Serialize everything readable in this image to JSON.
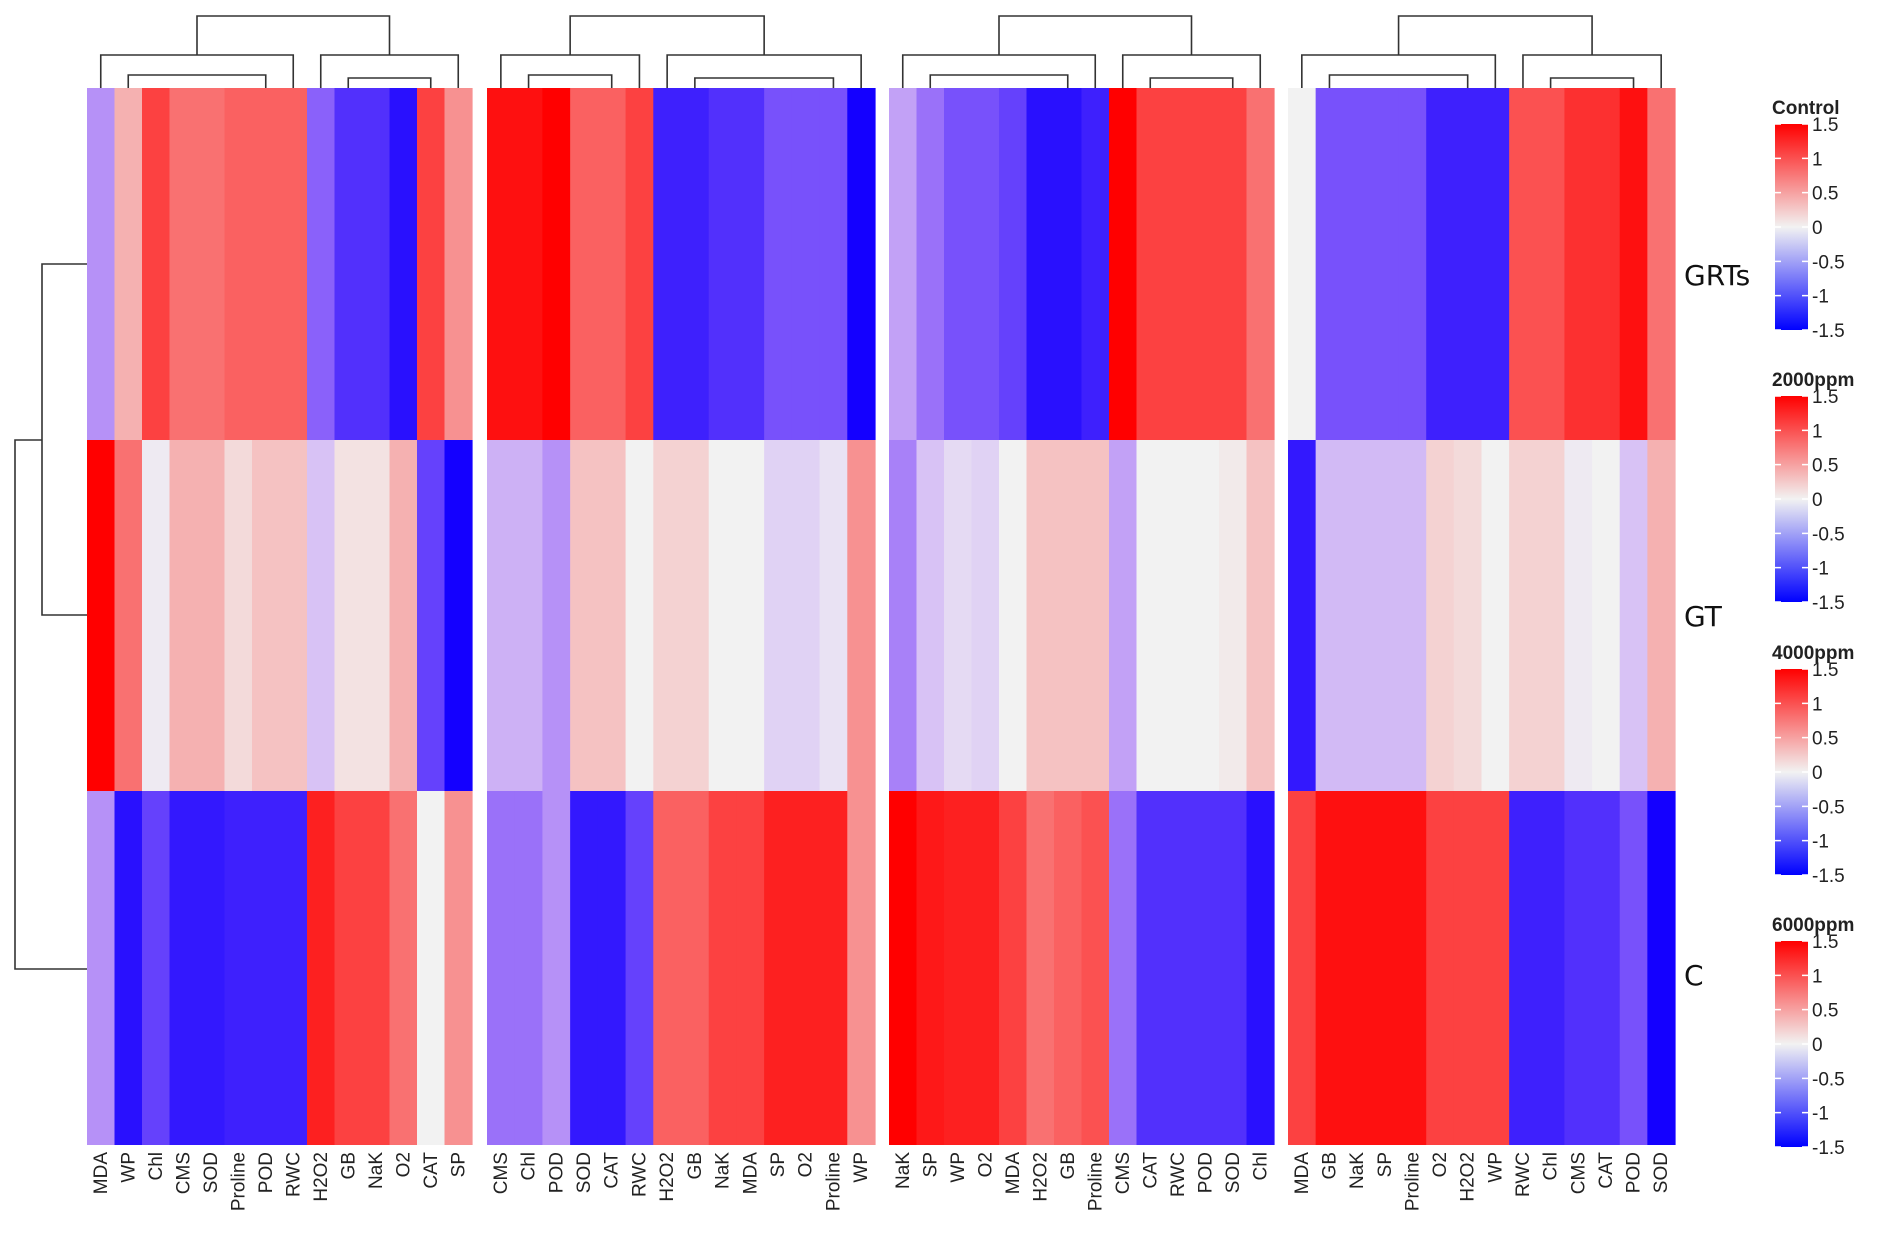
{
  "chart_data": {
    "type": "heatmap",
    "title": "",
    "color_scale": {
      "min": -1.5,
      "max": 1.5,
      "low_color": "#0000FF",
      "mid_color": "#F2F2F2",
      "high_color": "#FF0000",
      "ticks": [
        "1.5",
        "1",
        "0.5",
        "0",
        "-0.5",
        "-1",
        "-1.5"
      ]
    },
    "rows": [
      "GRTs",
      "GT",
      "C"
    ],
    "panels": [
      {
        "legend_title": "Control",
        "columns": [
          "MDA",
          "WP",
          "Chl",
          "CMS",
          "SOD",
          "Proline",
          "POD",
          "RWC",
          "H2O2",
          "GB",
          "NaK",
          "O2",
          "CAT",
          "SP"
        ],
        "values": [
          [
            -0.6,
            0.4,
            1.1,
            0.8,
            0.8,
            0.9,
            0.9,
            0.9,
            -0.9,
            -1.2,
            -1.2,
            -1.4,
            1.1,
            0.6
          ],
          [
            1.5,
            0.8,
            -0.05,
            0.4,
            0.4,
            0.15,
            0.3,
            0.3,
            -0.3,
            0.1,
            0.1,
            0.4,
            -1.1,
            -1.5
          ],
          [
            -0.6,
            -1.4,
            -1.1,
            -1.35,
            -1.35,
            -1.3,
            -1.3,
            -1.3,
            1.3,
            1.1,
            1.1,
            0.8,
            0.0,
            0.6
          ]
        ]
      },
      {
        "legend_title": "2000ppm",
        "columns": [
          "CMS",
          "Chl",
          "POD",
          "SOD",
          "CAT",
          "RWC",
          "H2O2",
          "GB",
          "NaK",
          "MDA",
          "SP",
          "O2",
          "Proline",
          "WP"
        ],
        "values": [
          [
            1.4,
            1.4,
            1.5,
            0.9,
            0.9,
            1.1,
            -1.3,
            -1.3,
            -1.2,
            -1.2,
            -1.0,
            -1.0,
            -1.0,
            -1.5
          ],
          [
            -0.4,
            -0.4,
            -0.6,
            0.3,
            0.3,
            0.0,
            0.2,
            0.2,
            0.0,
            0.0,
            -0.2,
            -0.2,
            -0.1,
            0.6
          ],
          [
            -0.8,
            -0.8,
            -0.6,
            -1.35,
            -1.35,
            -1.1,
            0.9,
            0.9,
            1.1,
            1.1,
            1.3,
            1.3,
            1.3,
            0.6
          ]
        ]
      },
      {
        "legend_title": "4000ppm",
        "columns": [
          "NaK",
          "SP",
          "WP",
          "O2",
          "MDA",
          "H2O2",
          "GB",
          "Proline",
          "CMS",
          "CAT",
          "RWC",
          "POD",
          "SOD",
          "Chl"
        ],
        "values": [
          [
            -0.5,
            -0.8,
            -1.0,
            -1.0,
            -1.1,
            -1.4,
            -1.4,
            -1.3,
            1.5,
            1.1,
            1.1,
            1.1,
            1.1,
            0.8
          ],
          [
            -0.7,
            -0.3,
            -0.15,
            -0.2,
            0.0,
            0.3,
            0.3,
            0.3,
            -0.5,
            0.0,
            0.0,
            0.0,
            0.05,
            0.3
          ],
          [
            1.5,
            1.35,
            1.3,
            1.3,
            1.1,
            0.8,
            0.9,
            1.0,
            -0.8,
            -1.2,
            -1.2,
            -1.2,
            -1.2,
            -1.4
          ]
        ]
      },
      {
        "legend_title": "6000ppm",
        "columns": [
          "MDA",
          "GB",
          "NaK",
          "SP",
          "Proline",
          "O2",
          "H2O2",
          "WP",
          "RWC",
          "Chl",
          "CMS",
          "CAT",
          "POD",
          "SOD"
        ],
        "values": [
          [
            0.0,
            -1.0,
            -1.0,
            -1.0,
            -1.0,
            -1.3,
            -1.3,
            -1.3,
            1.0,
            1.0,
            1.2,
            1.2,
            1.4,
            0.8
          ],
          [
            -1.35,
            -0.35,
            -0.35,
            -0.35,
            -0.35,
            0.2,
            0.15,
            0.0,
            0.2,
            0.2,
            -0.05,
            0.0,
            -0.3,
            0.4
          ],
          [
            1.1,
            1.4,
            1.4,
            1.4,
            1.4,
            1.1,
            1.1,
            1.1,
            -1.3,
            -1.3,
            -1.2,
            -1.2,
            -1.0,
            -1.5
          ]
        ]
      }
    ]
  }
}
